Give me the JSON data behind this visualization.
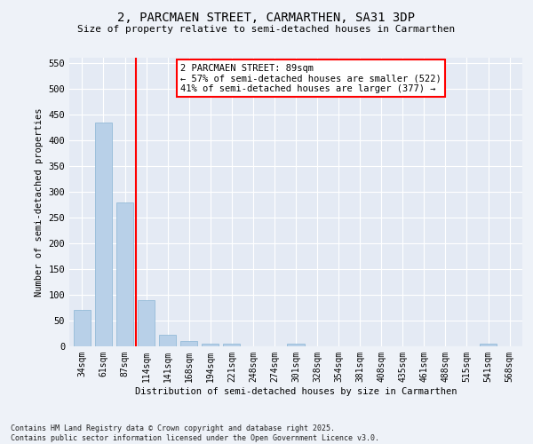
{
  "title": "2, PARCMAEN STREET, CARMARTHEN, SA31 3DP",
  "subtitle": "Size of property relative to semi-detached houses in Carmarthen",
  "xlabel": "Distribution of semi-detached houses by size in Carmarthen",
  "ylabel": "Number of semi-detached properties",
  "categories": [
    "34sqm",
    "61sqm",
    "87sqm",
    "114sqm",
    "141sqm",
    "168sqm",
    "194sqm",
    "221sqm",
    "248sqm",
    "274sqm",
    "301sqm",
    "328sqm",
    "354sqm",
    "381sqm",
    "408sqm",
    "435sqm",
    "461sqm",
    "488sqm",
    "515sqm",
    "541sqm",
    "568sqm"
  ],
  "values": [
    70,
    435,
    280,
    90,
    22,
    10,
    5,
    5,
    0,
    0,
    5,
    0,
    0,
    0,
    0,
    0,
    0,
    0,
    0,
    5,
    0
  ],
  "bar_color": "#b8d0e8",
  "bar_edge_color": "#89b4d4",
  "vline_x": 2.5,
  "vline_color": "red",
  "annotation_text": "2 PARCMAEN STREET: 89sqm\n← 57% of semi-detached houses are smaller (522)\n41% of semi-detached houses are larger (377) →",
  "annotation_box_color": "white",
  "annotation_box_edge_color": "red",
  "ylim": [
    0,
    560
  ],
  "yticks": [
    0,
    50,
    100,
    150,
    200,
    250,
    300,
    350,
    400,
    450,
    500,
    550
  ],
  "footer_text": "Contains HM Land Registry data © Crown copyright and database right 2025.\nContains public sector information licensed under the Open Government Licence v3.0.",
  "bg_color": "#eef2f8",
  "plot_bg_color": "#e4eaf4"
}
